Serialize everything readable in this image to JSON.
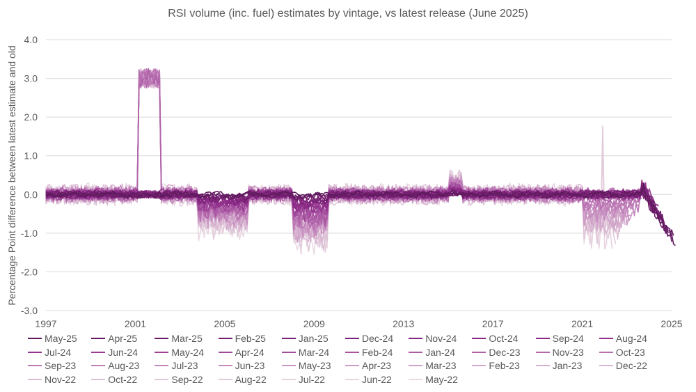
{
  "chart_data": {
    "type": "line",
    "title": "RSI volume (inc. fuel) estimates by vintage, vs latest release (June 2025)",
    "ylabel": "Percentage Point difference between latest estimate and old",
    "xlabel": "",
    "ylim": [
      -3.0,
      4.0
    ],
    "yticks": [
      "4.0",
      "3.0",
      "2.0",
      "1.0",
      "0.0",
      "-1.0",
      "-2.0",
      "-3.0"
    ],
    "xlim": [
      1997,
      2025
    ],
    "xticks": [
      "1997",
      "2001",
      "2005",
      "2009",
      "2013",
      "2017",
      "2021",
      "2025"
    ],
    "grid": "horizontal",
    "legend_position": "bottom",
    "series": [
      {
        "name": "May-25",
        "color": "#5e1a5c"
      },
      {
        "name": "Apr-25",
        "color": "#641b62"
      },
      {
        "name": "Mar-25",
        "color": "#6b1d68"
      },
      {
        "name": "Feb-25",
        "color": "#711f6e"
      },
      {
        "name": "Jan-25",
        "color": "#772174"
      },
      {
        "name": "Dec-24",
        "color": "#7d2379"
      },
      {
        "name": "Nov-24",
        "color": "#83257e"
      },
      {
        "name": "Oct-24",
        "color": "#882783"
      },
      {
        "name": "Sep-24",
        "color": "#8c2b87"
      },
      {
        "name": "Aug-24",
        "color": "#90308b"
      },
      {
        "name": "Jul-24",
        "color": "#94368f"
      },
      {
        "name": "Jun-24",
        "color": "#983c93"
      },
      {
        "name": "May-24",
        "color": "#9c4297"
      },
      {
        "name": "Apr-24",
        "color": "#a0489a"
      },
      {
        "name": "Mar-24",
        "color": "#a44e9e"
      },
      {
        "name": "Feb-24",
        "color": "#a855a2"
      },
      {
        "name": "Jan-24",
        "color": "#ac5ca6"
      },
      {
        "name": "Dec-23",
        "color": "#b062a9"
      },
      {
        "name": "Nov-23",
        "color": "#b469ad"
      },
      {
        "name": "Oct-23",
        "color": "#b870b1"
      },
      {
        "name": "Sep-23",
        "color": "#bc77b4"
      },
      {
        "name": "Aug-23",
        "color": "#bf7eb8"
      },
      {
        "name": "Jul-23",
        "color": "#c285bb"
      },
      {
        "name": "Jun-23",
        "color": "#c68cbf"
      },
      {
        "name": "May-23",
        "color": "#c993c2"
      },
      {
        "name": "Apr-23",
        "color": "#cc9ac5"
      },
      {
        "name": "Mar-23",
        "color": "#cfa1c8"
      },
      {
        "name": "Feb-23",
        "color": "#d2a8cb"
      },
      {
        "name": "Jan-23",
        "color": "#d5afce"
      },
      {
        "name": "Dec-22",
        "color": "#d8b5d1"
      },
      {
        "name": "Nov-22",
        "color": "#dbbbd4"
      },
      {
        "name": "Oct-22",
        "color": "#ddc1d7"
      },
      {
        "name": "Sep-22",
        "color": "#e0c6d9"
      },
      {
        "name": "Aug-22",
        "color": "#e2cbdc"
      },
      {
        "name": "Jul-22",
        "color": "#e5d0de"
      },
      {
        "name": "Jun-22",
        "color": "#e7d4e1"
      },
      {
        "name": "May-22",
        "color": "#e9d9e3"
      }
    ],
    "features": {
      "spike_2001": {
        "x_range": [
          2001.1,
          2002.1
        ],
        "y_approx": [
          2.6,
          3.3
        ]
      },
      "dip_2004": {
        "x_range": [
          2003.8,
          2006.0
        ],
        "y_approx": [
          -0.5,
          -0.9
        ]
      },
      "dip_2008": {
        "x_range": [
          2008.0,
          2009.6
        ],
        "y_approx": [
          -0.8,
          -1.6
        ]
      },
      "spike_2021": {
        "x": 2021.9,
        "y": 2.3
      },
      "dip_2022": {
        "x_range": [
          2021.0,
          2023.8
        ],
        "y_approx": [
          -0.6,
          -2.1
        ]
      },
      "tail_2024": {
        "x_range": [
          2023.6,
          2025.2
        ],
        "y_approx": [
          0.3,
          -1.7
        ]
      }
    },
    "series_endpoints": [
      {
        "name": "May-25",
        "end_x": 2025.2,
        "end_y": -0.1
      },
      {
        "name": "Apr-25",
        "end_x": 2025.1,
        "end_y": -1.2
      },
      {
        "name": "Aug-24",
        "end_x": 2024.6,
        "end_y": -1.6
      },
      {
        "name": "May-22",
        "end_x": 2022.3,
        "end_y": -2.1
      }
    ]
  }
}
